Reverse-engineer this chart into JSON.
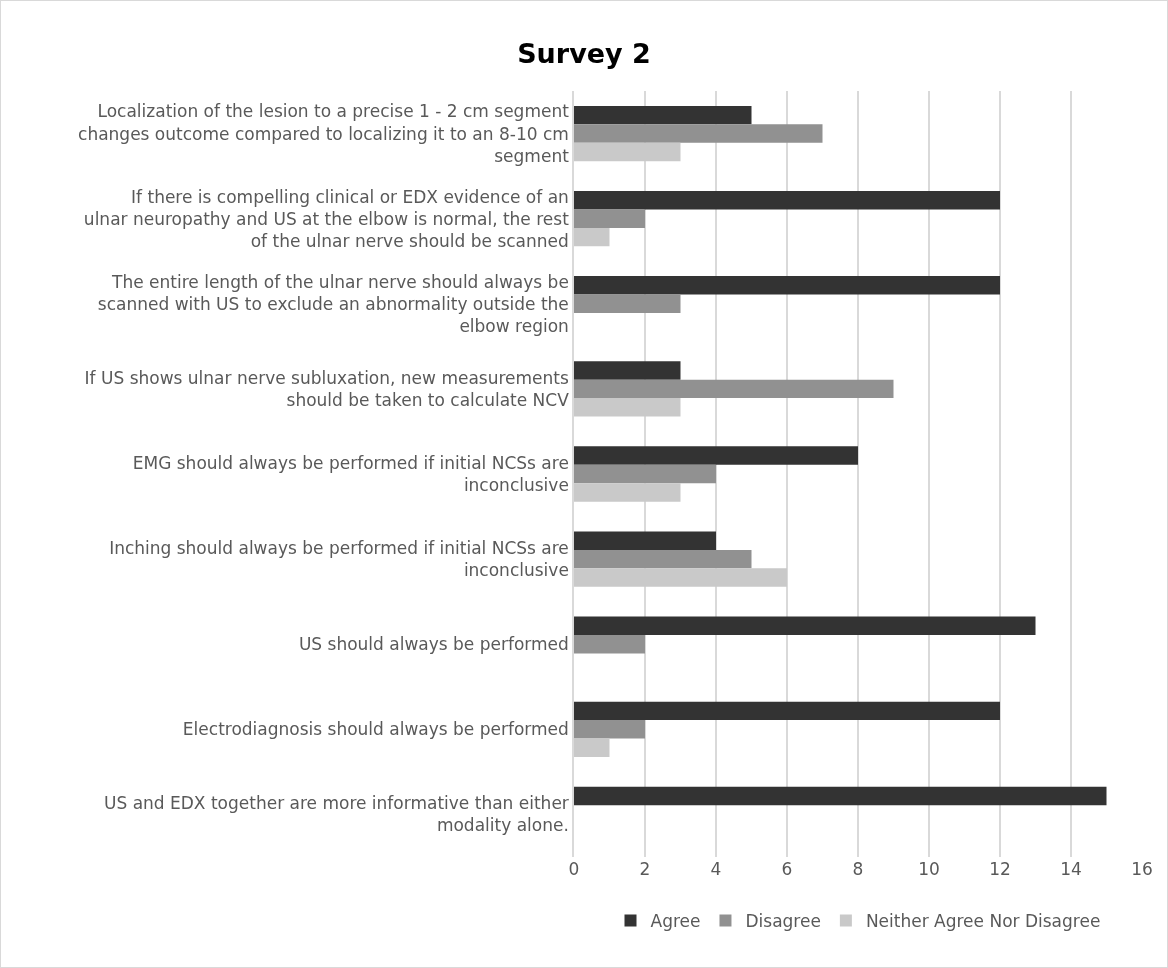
{
  "chart_data": {
    "type": "bar",
    "orientation": "horizontal",
    "title": "Survey 2",
    "categories": [
      "Localization of the lesion to a precise 1 - 2 cm segment changes outcome compared to localizing it to an 8-10 cm segment",
      "If there is compelling clinical or EDX evidence of an ulnar neuropathy and US at the elbow is normal, the rest of the ulnar nerve should be scanned",
      "The entire length of the ulnar nerve should always be scanned with US to exclude an abnormality outside the elbow region",
      "If US shows ulnar nerve subluxation, new measurements should be taken to calculate NCV",
      "EMG should always be performed if initial NCSs are inconclusive",
      "Inching should always be performed if initial NCSs are inconclusive",
      "US should always be performed",
      "Electrodiagnosis should always be performed",
      "US and EDX together are more informative than either modality alone."
    ],
    "series": [
      {
        "name": "Agree",
        "color": "#333333",
        "values": [
          5,
          12,
          12,
          3,
          8,
          4,
          13,
          12,
          15
        ]
      },
      {
        "name": "Disagree",
        "color": "#919191",
        "values": [
          7,
          2,
          3,
          9,
          4,
          5,
          2,
          2,
          null
        ]
      },
      {
        "name": "Neither Agree Nor Disagree",
        "color": "#c9c9c9",
        "values": [
          3,
          1,
          null,
          3,
          3,
          6,
          null,
          1,
          null
        ]
      }
    ],
    "xlim": [
      0,
      16
    ],
    "xticks": [
      0,
      2,
      4,
      6,
      8,
      10,
      12,
      14,
      16
    ],
    "grid": "x",
    "legend": "bottom"
  }
}
